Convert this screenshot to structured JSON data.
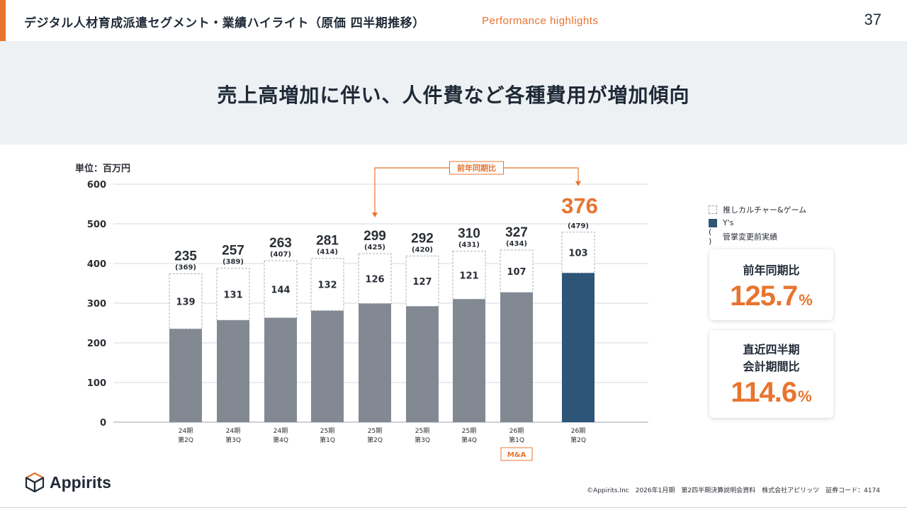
{
  "header": {
    "title": "デジタル人材育成派遣セグメント・業績ハイライト（原価 四半期推移）",
    "subtitle": "Performance highlights",
    "page_number": "37"
  },
  "banner": {
    "text": "売上高増加に伴い、人件費など各種費用が増加傾向"
  },
  "chart_data": {
    "type": "bar",
    "unit_label": "単位：百万円",
    "ylim": [
      0,
      600
    ],
    "yticks": [
      "0",
      "100",
      "200",
      "300",
      "400",
      "500",
      "600"
    ],
    "grid": true,
    "categories": [
      [
        "24期",
        "第2Q"
      ],
      [
        "24期",
        "第3Q"
      ],
      [
        "24期",
        "第4Q"
      ],
      [
        "25期",
        "第1Q"
      ],
      [
        "25期",
        "第2Q"
      ],
      [
        "25期",
        "第3Q"
      ],
      [
        "25期",
        "第4Q"
      ],
      [
        "26期",
        "第1Q"
      ],
      [
        "26期",
        "第2Q"
      ]
    ],
    "series": [
      {
        "name": "Y's",
        "values": [
          235,
          257,
          263,
          281,
          299,
          292,
          310,
          327,
          376
        ]
      },
      {
        "name": "推しカルチャー&ゲーム",
        "values": [
          139,
          131,
          144,
          132,
          126,
          127,
          121,
          107,
          103
        ]
      }
    ],
    "totals": [
      "235",
      "257",
      "263",
      "281",
      "299",
      "292",
      "310",
      "327",
      "376"
    ],
    "pre_change_actuals": [
      "(369)",
      "(389)",
      "(407)",
      "(414)",
      "(425)",
      "(420)",
      "(431)",
      "(434)",
      "(479)"
    ],
    "highlight_index": 8,
    "annotation": {
      "label": "前年同期比",
      "from_index": 4,
      "to_index": 8
    },
    "ma_tag": {
      "label": "M&A",
      "index": 7
    },
    "colors": {
      "base": "#828993",
      "highlight": "#2d5577",
      "accent": "#e8742f",
      "dashed": "#aab2bb"
    }
  },
  "legend": [
    {
      "label": "推しカルチャー&ゲーム",
      "style": "dashed"
    },
    {
      "label": "Y's",
      "style": "solid"
    },
    {
      "label": "管掌変更前実績",
      "style": "paren",
      "symbol": "( )"
    }
  ],
  "cards": [
    {
      "label": "前年同期比",
      "value": "125.7",
      "unit": "%"
    },
    {
      "label_line1": "直近四半期",
      "label_line2": "会計期間比",
      "value": "114.6",
      "unit": "%"
    }
  ],
  "logo": {
    "text": "Appirits",
    "icon": "cube-logo-icon"
  },
  "footer": {
    "text": "©Appirits.Inc　2026年1月期　第2四半期決算説明会資料　株式会社アピリッツ　証券コード：4174"
  }
}
